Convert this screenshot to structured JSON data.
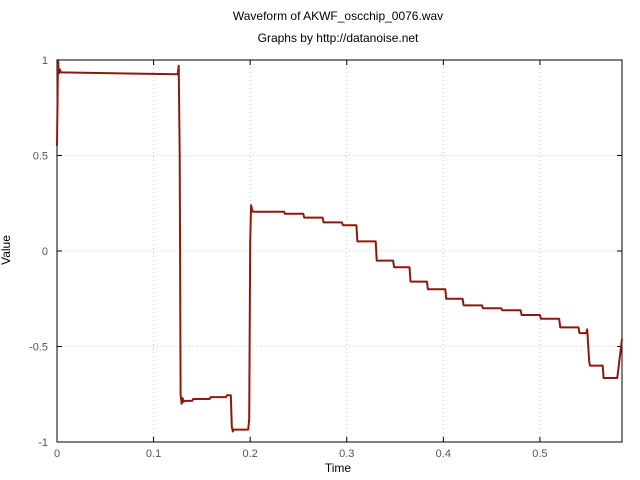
{
  "chart_data": {
    "type": "line",
    "title": "Waveform of AKWF_oscchip_0076.wav",
    "subtitle": "Graphs by http://datanoise.net",
    "xlabel": "Time",
    "ylabel": "Value",
    "xlim": [
      0,
      0.585
    ],
    "ylim": [
      -1,
      1
    ],
    "xticks": [
      {
        "value": 0,
        "label": "0"
      },
      {
        "value": 0.1,
        "label": "0.1"
      },
      {
        "value": 0.2,
        "label": "0.2"
      },
      {
        "value": 0.3,
        "label": "0.3"
      },
      {
        "value": 0.4,
        "label": "0.4"
      },
      {
        "value": 0.5,
        "label": "0.5"
      }
    ],
    "yticks": [
      {
        "value": 1,
        "label": "1"
      },
      {
        "value": 0.5,
        "label": "0.5"
      },
      {
        "value": 0,
        "label": "0"
      },
      {
        "value": -0.5,
        "label": "-0.5"
      },
      {
        "value": -1,
        "label": "-1"
      }
    ],
    "grid": true,
    "line_color": "#8b1a0e",
    "series": [
      {
        "x": [
          0,
          0.001,
          0.002,
          0.003,
          0.004,
          0.125,
          0.126,
          0.127,
          0.128,
          0.129,
          0.13,
          0.131,
          0.132,
          0.14,
          0.141,
          0.158,
          0.159,
          0.175,
          0.176,
          0.18,
          0.181,
          0.182,
          0.183,
          0.198,
          0.199,
          0.2,
          0.201,
          0.202,
          0.203,
          0.235,
          0.236,
          0.255,
          0.256,
          0.275,
          0.276,
          0.295,
          0.296,
          0.31,
          0.311,
          0.33,
          0.331,
          0.348,
          0.349,
          0.365,
          0.366,
          0.383,
          0.384,
          0.402,
          0.403,
          0.42,
          0.421,
          0.44,
          0.441,
          0.46,
          0.461,
          0.48,
          0.481,
          0.5,
          0.501,
          0.52,
          0.521,
          0.54,
          0.541,
          0.548,
          0.549,
          0.551,
          0.552,
          0.565,
          0.566,
          0.58,
          0.581,
          0.585
        ],
        "y": [
          0.55,
          1.0,
          0.93,
          0.95,
          0.935,
          0.925,
          0.97,
          0.5,
          -0.75,
          -0.8,
          -0.77,
          -0.79,
          -0.785,
          -0.785,
          -0.775,
          -0.775,
          -0.765,
          -0.765,
          -0.755,
          -0.755,
          -0.92,
          -0.945,
          -0.935,
          -0.935,
          -0.88,
          0.05,
          0.24,
          0.215,
          0.205,
          0.205,
          0.195,
          0.195,
          0.175,
          0.175,
          0.15,
          0.15,
          0.135,
          0.135,
          0.05,
          0.05,
          -0.05,
          -0.05,
          -0.085,
          -0.085,
          -0.16,
          -0.16,
          -0.2,
          -0.2,
          -0.25,
          -0.25,
          -0.285,
          -0.285,
          -0.3,
          -0.3,
          -0.31,
          -0.31,
          -0.335,
          -0.335,
          -0.355,
          -0.355,
          -0.4,
          -0.4,
          -0.43,
          -0.43,
          -0.41,
          -0.58,
          -0.6,
          -0.6,
          -0.665,
          -0.665,
          -0.63,
          -0.46
        ]
      }
    ]
  }
}
